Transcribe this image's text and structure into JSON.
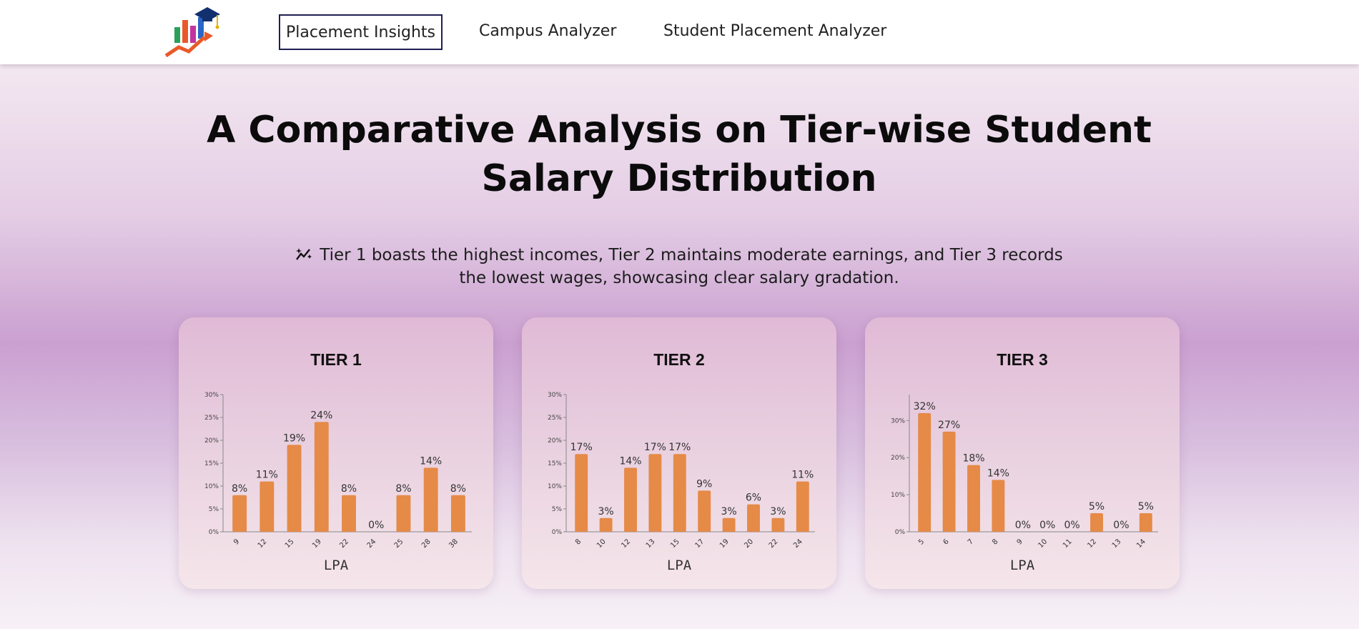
{
  "nav": {
    "items": [
      "Placement Insights",
      "Campus Analyzer",
      "Student Placement Analyzer"
    ],
    "active": "Placement Insights"
  },
  "main": {
    "title": "A Comparative Analysis on Tier-wise Student Salary Distribution",
    "insight_icon": "trend-sparkle-icon",
    "insight": "Tier 1 boasts the highest incomes, Tier 2 maintains moderate earnings, and Tier 3 records the lowest wages, showcasing clear salary gradation."
  },
  "colors": {
    "bar": "#e58a47",
    "nav_border": "#1f1f54"
  },
  "chart_data": [
    {
      "type": "bar",
      "title": "TIER 1",
      "xlabel": "LPA",
      "ylabel": "",
      "categories": [
        "9",
        "12",
        "15",
        "19",
        "22",
        "24",
        "25",
        "28",
        "38"
      ],
      "values": [
        8,
        11,
        19,
        24,
        8,
        0,
        8,
        14,
        8
      ],
      "value_labels": [
        "8%",
        "11%",
        "19%",
        "24%",
        "8%",
        "0%",
        "8%",
        "14%",
        "8%"
      ],
      "ylim": [
        0,
        30
      ],
      "yticks": [
        "0%",
        "5%",
        "10%",
        "15%",
        "20%",
        "25%",
        "30%"
      ],
      "grid": false
    },
    {
      "type": "bar",
      "title": "TIER 2",
      "xlabel": "LPA",
      "ylabel": "",
      "categories": [
        "8",
        "10",
        "12",
        "13",
        "15",
        "17",
        "19",
        "20",
        "22",
        "24"
      ],
      "values": [
        17,
        3,
        14,
        17,
        17,
        9,
        3,
        6,
        3,
        11
      ],
      "value_labels": [
        "17%",
        "3%",
        "14%",
        "17%",
        "17%",
        "9%",
        "3%",
        "6%",
        "3%",
        "11%"
      ],
      "ylim": [
        0,
        30
      ],
      "yticks": [
        "0%",
        "5%",
        "10%",
        "15%",
        "20%",
        "25%",
        "30%"
      ],
      "grid": false
    },
    {
      "type": "bar",
      "title": "TIER 3",
      "xlabel": "LPA",
      "ylabel": "",
      "categories": [
        "5",
        "6",
        "7",
        "8",
        "9",
        "10",
        "11",
        "12",
        "13",
        "14"
      ],
      "values": [
        32,
        27,
        18,
        14,
        0,
        0,
        0,
        5,
        0,
        5
      ],
      "value_labels": [
        "32%",
        "27%",
        "18%",
        "14%",
        "0%",
        "0%",
        "0%",
        "5%",
        "0%",
        "5%"
      ],
      "ylim": [
        0,
        37
      ],
      "yticks": [
        "0%",
        "10%",
        "20%",
        "30%"
      ],
      "ytick_values": [
        0,
        10,
        20,
        30
      ],
      "grid": false
    }
  ]
}
